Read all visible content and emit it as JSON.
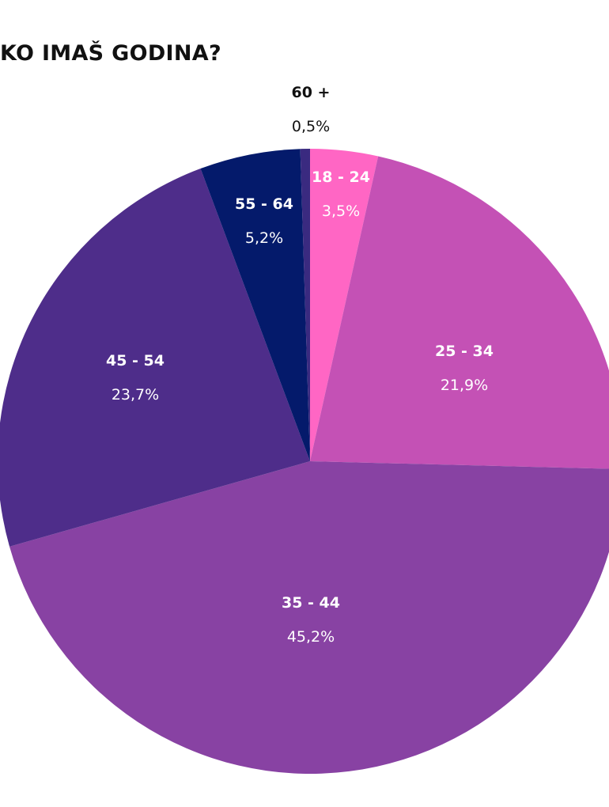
{
  "chart_data": {
    "type": "pie",
    "title": "KO IMAŠ GODINA?",
    "slices": [
      {
        "label": "18 - 24",
        "value": 3.5,
        "value_label": "3,5%",
        "color": "#ff66c4"
      },
      {
        "label": "25 - 34",
        "value": 21.9,
        "value_label": "21,9%",
        "color": "#c451b5"
      },
      {
        "label": "35 - 44",
        "value": 45.2,
        "value_label": "45,2%",
        "color": "#8842a3"
      },
      {
        "label": "45 - 54",
        "value": 23.7,
        "value_label": "23,7%",
        "color": "#4e2d8a"
      },
      {
        "label": "55 - 64",
        "value": 5.2,
        "value_label": "5,2%",
        "color": "#041a6b"
      },
      {
        "label": "60 +",
        "value": 0.5,
        "value_label": "0,5%",
        "color": "#3a2a80"
      }
    ],
    "start_angle": "12 o'clock",
    "direction": "clockwise",
    "legend": "none",
    "label_color": "#ffffff",
    "outside_label_color": "#111111"
  }
}
